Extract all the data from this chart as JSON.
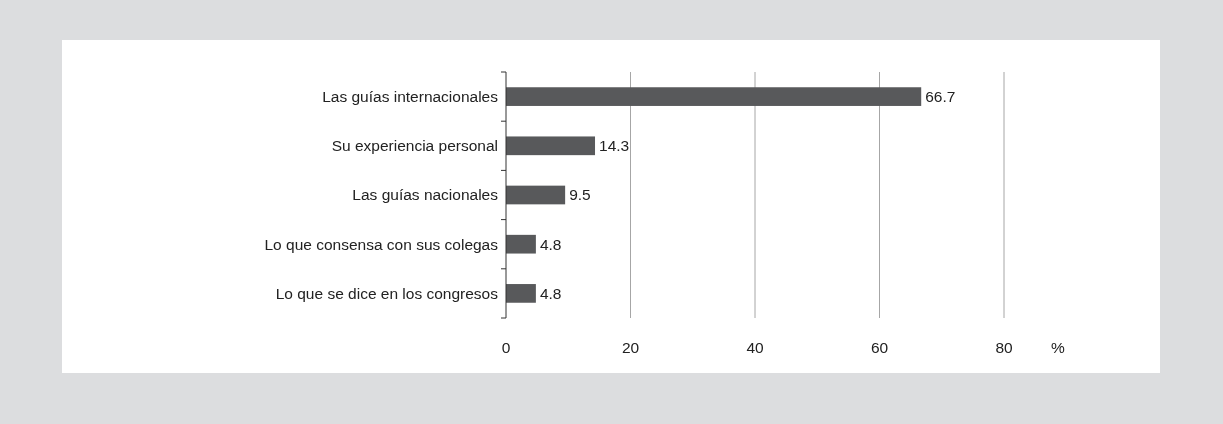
{
  "chart_data": {
    "type": "bar",
    "orientation": "horizontal",
    "categories": [
      "Las guías internacionales",
      "Su experiencia personal",
      "Las guías nacionales",
      "Lo que consensa con sus colegas",
      "Lo que se dice en los congresos"
    ],
    "values": [
      66.7,
      14.3,
      9.5,
      4.8,
      4.8
    ],
    "color": "#58595b",
    "xlim": [
      0,
      80
    ],
    "xticks": [
      0,
      20,
      40,
      60,
      80
    ],
    "xlabel": "%",
    "grid": "x",
    "data_labels": true
  }
}
